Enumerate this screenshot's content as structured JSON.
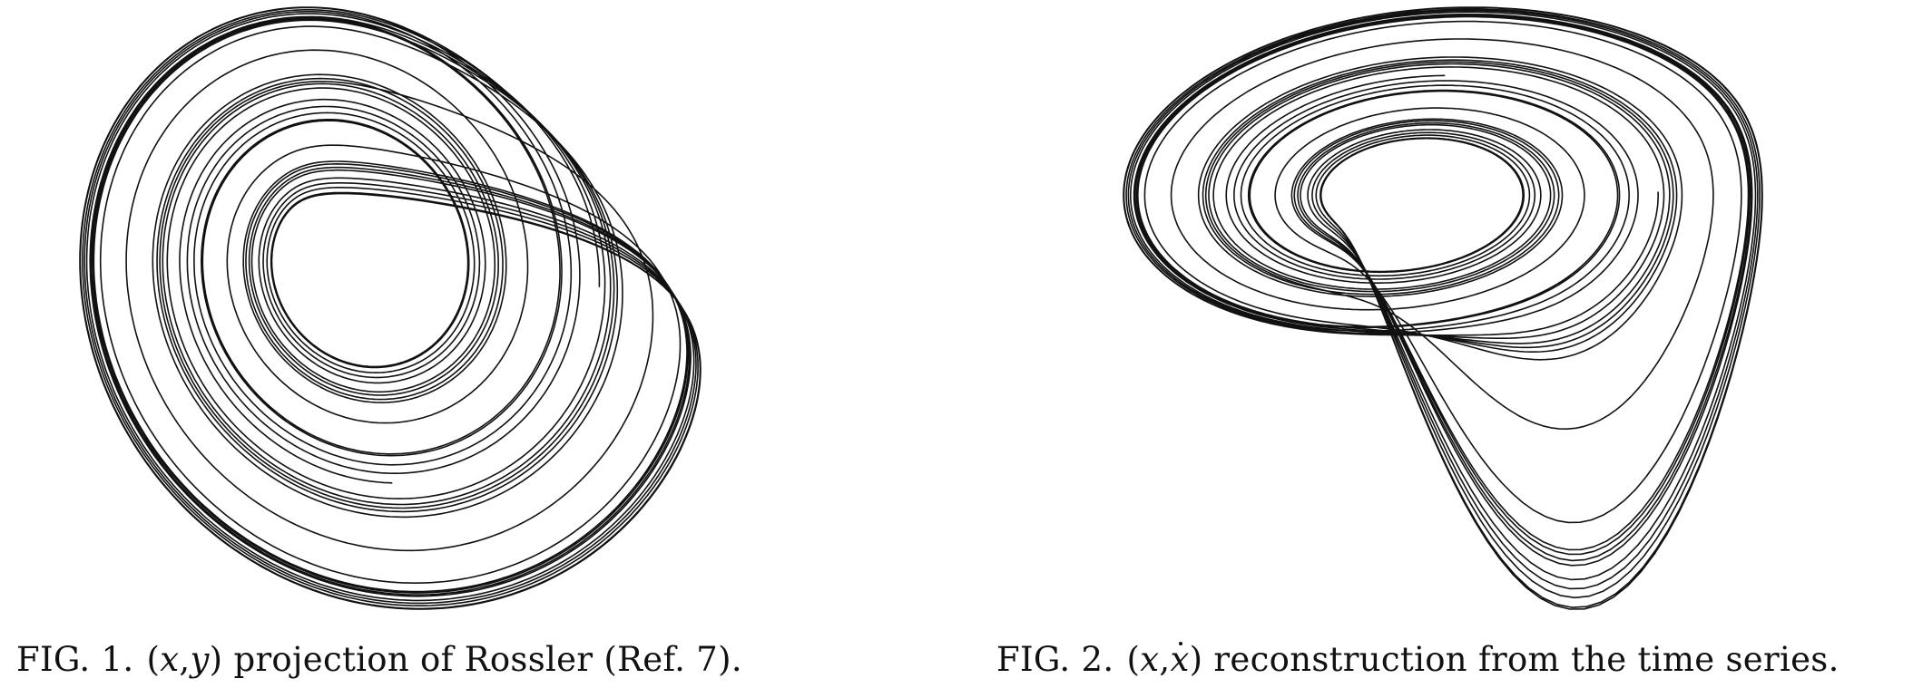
{
  "figures": [
    {
      "label": "FIG. 1.",
      "coords_open": "(",
      "coord_a": "x",
      "coord_sep": ",",
      "coord_b": "y",
      "coords_close": ")",
      "caption_text": "projection of Rossler (Ref. 7)."
    },
    {
      "label": "FIG. 2.",
      "coords_open": "(",
      "coord_a": "x",
      "coord_sep": ",",
      "coord_b": "x",
      "coords_close": ")",
      "caption_text": "reconstruction from the time series."
    }
  ]
}
